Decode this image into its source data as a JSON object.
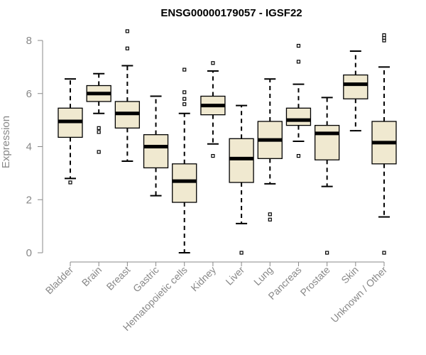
{
  "chart_data": {
    "type": "boxplot",
    "title": "ENSG00000179057 - IGSF22",
    "xlabel": "",
    "ylabel": "Expression",
    "ylim": [
      0,
      8.4
    ],
    "yticks": [
      0,
      2,
      4,
      6,
      8
    ],
    "grid": false,
    "legend": "none",
    "colors": {
      "box_fill": "#f0e9d0",
      "box_stroke": "#000000",
      "median": "#000000",
      "axis": "#888888",
      "text_muted": "#888888"
    },
    "categories": [
      "Bladder",
      "Brain",
      "Breast",
      "Gastric",
      "Hematopoietic cells",
      "Kidney",
      "Liver",
      "Lung",
      "Pancreas",
      "Prostate",
      "Skin",
      "Unknown / Other"
    ],
    "boxes": [
      {
        "name": "Bladder",
        "whisker_low": 2.8,
        "q1": 4.35,
        "median": 4.95,
        "q3": 5.45,
        "whisker_high": 6.55,
        "outliers": [
          2.65
        ]
      },
      {
        "name": "Brain",
        "whisker_low": 5.25,
        "q1": 5.7,
        "median": 6.0,
        "q3": 6.3,
        "whisker_high": 6.75,
        "outliers": [
          4.55,
          4.7,
          3.8
        ]
      },
      {
        "name": "Breast",
        "whisker_low": 3.45,
        "q1": 4.7,
        "median": 5.25,
        "q3": 5.7,
        "whisker_high": 7.05,
        "outliers": [
          7.7,
          8.35
        ]
      },
      {
        "name": "Gastric",
        "whisker_low": 2.15,
        "q1": 3.2,
        "median": 4.0,
        "q3": 4.45,
        "whisker_high": 5.9,
        "outliers": []
      },
      {
        "name": "Hematopoietic cells",
        "whisker_low": 0.0,
        "q1": 1.9,
        "median": 2.7,
        "q3": 3.35,
        "whisker_high": 5.25,
        "outliers": [
          5.6,
          5.8,
          6.05,
          6.9
        ]
      },
      {
        "name": "Kidney",
        "whisker_low": 4.1,
        "q1": 5.2,
        "median": 5.55,
        "q3": 5.9,
        "whisker_high": 6.85,
        "outliers": [
          3.65,
          7.15
        ]
      },
      {
        "name": "Liver",
        "whisker_low": 1.1,
        "q1": 2.65,
        "median": 3.55,
        "q3": 4.3,
        "whisker_high": 5.55,
        "outliers": [
          0.0
        ]
      },
      {
        "name": "Lung",
        "whisker_low": 2.6,
        "q1": 3.55,
        "median": 4.25,
        "q3": 4.95,
        "whisker_high": 6.55,
        "outliers": [
          1.45,
          1.25
        ]
      },
      {
        "name": "Pancreas",
        "whisker_low": 4.2,
        "q1": 4.8,
        "median": 5.0,
        "q3": 5.45,
        "whisker_high": 6.35,
        "outliers": [
          3.65,
          7.2,
          7.8
        ]
      },
      {
        "name": "Prostate",
        "whisker_low": 2.5,
        "q1": 3.5,
        "median": 4.5,
        "q3": 4.8,
        "whisker_high": 5.85,
        "outliers": [
          0.0
        ]
      },
      {
        "name": "Skin",
        "whisker_low": 4.6,
        "q1": 5.8,
        "median": 6.35,
        "q3": 6.7,
        "whisker_high": 7.6,
        "outliers": []
      },
      {
        "name": "Unknown / Other",
        "whisker_low": 1.35,
        "q1": 3.35,
        "median": 4.15,
        "q3": 4.95,
        "whisker_high": 7.0,
        "outliers": [
          0.0,
          8.0,
          8.1,
          8.2
        ]
      }
    ]
  }
}
